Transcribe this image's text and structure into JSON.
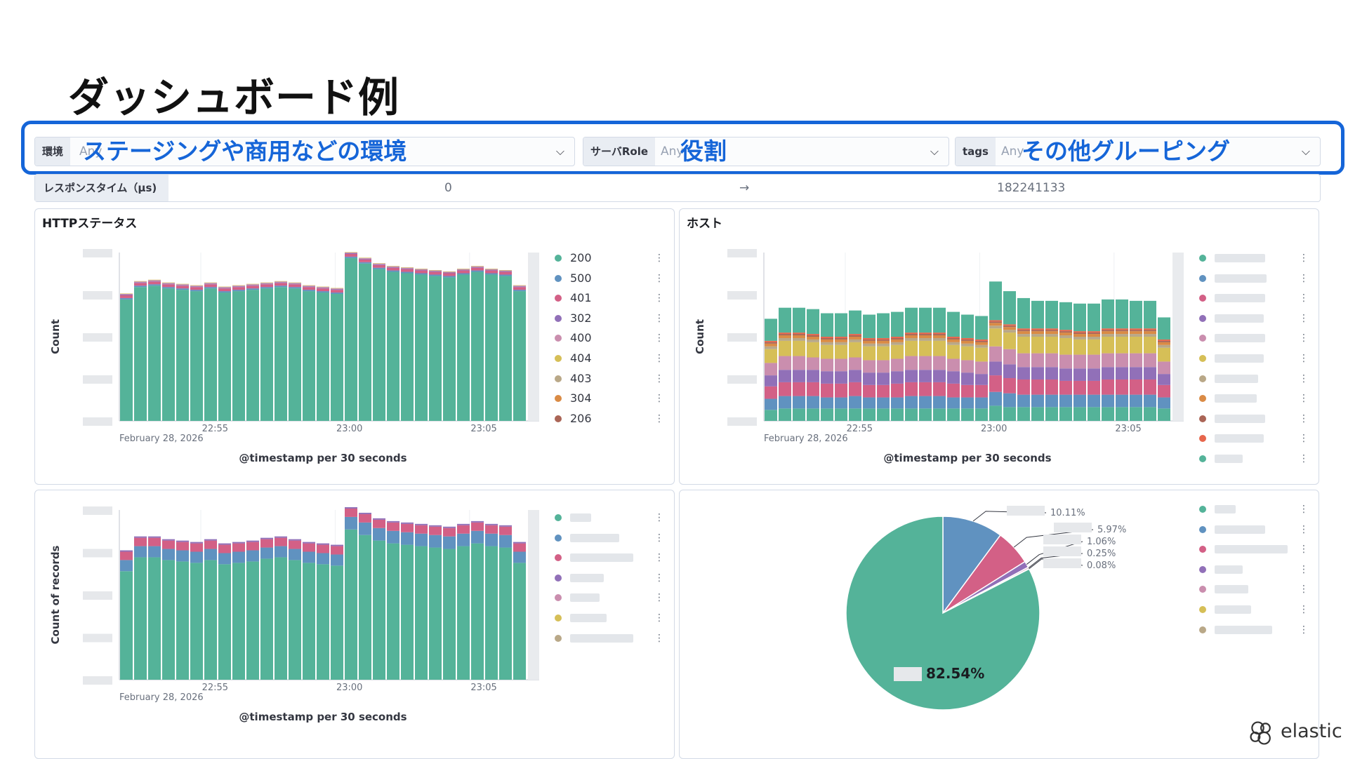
{
  "slide": {
    "title": "ダッシュボード例"
  },
  "controls": [
    {
      "label": "環境",
      "value": "Any",
      "annotation": "ステージングや商用などの環境"
    },
    {
      "label": "サーバRole",
      "value": "Any",
      "annotation": "役割"
    },
    {
      "label": "tags",
      "value": "Any",
      "annotation": "その他グルーピング"
    }
  ],
  "range": {
    "label": "レスポンスタイム（μs)",
    "min": "0",
    "arrow": "→",
    "max": "182241133"
  },
  "panels": {
    "http_status": {
      "title": "HTTPステータス"
    },
    "host": {
      "title": "ホスト"
    },
    "records": {
      "title": ""
    },
    "pie": {
      "title": ""
    }
  },
  "legend_http": [
    "200",
    "500",
    "401",
    "302",
    "400",
    "404",
    "403",
    "304",
    "206"
  ],
  "colors": [
    "#54b399",
    "#6092c0",
    "#d36086",
    "#9170b8",
    "#ca8eae",
    "#d6bf57",
    "#b9a888",
    "#da8b45",
    "#aa6556",
    "#e7664c"
  ],
  "logo": {
    "text": "elastic"
  },
  "chart_data": [
    {
      "type": "bar",
      "stacked": true,
      "title": "HTTPステータス",
      "xlabel": "@timestamp per 30 seconds",
      "ylabel": "Count",
      "x_ticks": [
        "22:55",
        "23:00",
        "23:05"
      ],
      "x_date_label": "February 28, 2026",
      "series": [
        {
          "name": "200",
          "values": [
            88,
            97,
            98,
            96,
            95,
            94,
            96,
            93,
            94,
            95,
            96,
            97,
            96,
            94,
            93,
            92,
            118,
            114,
            110,
            108,
            107,
            106,
            105,
            104,
            106,
            108,
            106,
            105,
            94
          ]
        },
        {
          "name": "500",
          "values": [
            1,
            1,
            1,
            1,
            1,
            1,
            1,
            1,
            1,
            1,
            1,
            1,
            1,
            1,
            1,
            1,
            1,
            1,
            1,
            1,
            1,
            1,
            1,
            1,
            1,
            1,
            1,
            1,
            1
          ]
        },
        {
          "name": "401",
          "values": [
            2,
            2,
            2,
            2,
            2,
            2,
            2,
            2,
            2,
            2,
            2,
            2,
            2,
            2,
            2,
            2,
            2,
            2,
            2,
            2,
            2,
            2,
            2,
            2,
            2,
            2,
            2,
            2,
            2
          ]
        },
        {
          "name": "302",
          "values": [
            0.5,
            0.5,
            0.5,
            0.5,
            0.5,
            0.5,
            0.5,
            0.5,
            0.5,
            0.5,
            0.5,
            0.5,
            0.5,
            0.5,
            0.5,
            0.5,
            0.5,
            0.5,
            0.5,
            0.5,
            0.5,
            0.5,
            0.5,
            0.5,
            0.5,
            0.5,
            0.5,
            0.5,
            0.5
          ]
        },
        {
          "name": "400",
          "values": [
            0.5,
            0.5,
            0.5,
            0.5,
            0.5,
            0.5,
            0.5,
            0.5,
            0.5,
            0.5,
            0.5,
            0.5,
            0.5,
            0.5,
            0.5,
            0.5,
            0.5,
            0.5,
            0.5,
            0.5,
            0.5,
            0.5,
            0.5,
            0.5,
            0.5,
            0.5,
            0.5,
            0.5,
            0.5
          ]
        },
        {
          "name": "404",
          "values": [
            0.3,
            0.3,
            0.3,
            0.3,
            0.3,
            0.3,
            0.3,
            0.3,
            0.3,
            0.3,
            0.3,
            0.3,
            0.3,
            0.3,
            0.3,
            0.3,
            0.3,
            0.3,
            0.3,
            0.3,
            0.3,
            0.3,
            0.3,
            0.3,
            0.3,
            0.3,
            0.3,
            0.3,
            0.3
          ]
        }
      ]
    },
    {
      "type": "bar",
      "stacked": true,
      "title": "ホスト",
      "xlabel": "@timestamp per 30 seconds",
      "ylabel": "Count",
      "x_ticks": [
        "22:55",
        "23:00",
        "23:05"
      ],
      "x_date_label": "February 28, 2026",
      "series": [
        {
          "values": [
            8,
            9,
            9,
            9,
            9,
            9,
            9,
            9,
            9,
            9,
            9,
            9,
            9,
            9,
            9,
            9,
            11,
            10,
            10,
            10,
            10,
            10,
            10,
            10,
            10,
            10,
            10,
            10,
            9
          ]
        },
        {
          "values": [
            8,
            9,
            9,
            9,
            8,
            8,
            9,
            8,
            8,
            8,
            9,
            9,
            9,
            8,
            8,
            8,
            10,
            10,
            9,
            9,
            9,
            9,
            9,
            9,
            9,
            9,
            9,
            9,
            8
          ]
        },
        {
          "values": [
            9,
            10,
            10,
            10,
            10,
            10,
            10,
            9,
            9,
            10,
            10,
            10,
            10,
            10,
            9,
            9,
            12,
            11,
            11,
            11,
            11,
            10,
            10,
            10,
            11,
            11,
            11,
            11,
            9
          ]
        },
        {
          "values": [
            8,
            9,
            9,
            9,
            9,
            9,
            9,
            9,
            9,
            9,
            9,
            9,
            9,
            9,
            9,
            8,
            10,
            10,
            9,
            9,
            9,
            9,
            9,
            9,
            9,
            9,
            9,
            9,
            8
          ]
        },
        {
          "values": [
            9,
            10,
            10,
            9,
            9,
            9,
            9,
            9,
            9,
            9,
            10,
            10,
            10,
            9,
            9,
            9,
            11,
            11,
            10,
            10,
            10,
            10,
            10,
            10,
            10,
            10,
            10,
            10,
            9
          ]
        },
        {
          "values": [
            10,
            11,
            11,
            11,
            10,
            10,
            11,
            10,
            10,
            10,
            11,
            11,
            11,
            10,
            10,
            10,
            13,
            12,
            12,
            12,
            12,
            12,
            11,
            11,
            12,
            12,
            12,
            12,
            10
          ]
        },
        {
          "values": [
            2,
            2,
            2,
            2,
            2,
            2,
            2,
            2,
            2,
            2,
            2,
            2,
            2,
            2,
            2,
            2,
            2,
            2,
            2,
            2,
            2,
            2,
            2,
            2,
            2,
            2,
            2,
            2,
            2
          ]
        },
        {
          "values": [
            2,
            2,
            2,
            2,
            2,
            2,
            2,
            2,
            2,
            2,
            2,
            2,
            2,
            2,
            2,
            2,
            2,
            2,
            2,
            2,
            2,
            2,
            2,
            2,
            2,
            2,
            2,
            2,
            2
          ]
        },
        {
          "values": [
            1,
            1,
            1,
            1,
            1,
            1,
            1,
            1,
            1,
            1,
            1,
            1,
            1,
            1,
            1,
            1,
            1,
            1,
            1,
            1,
            1,
            1,
            1,
            1,
            1,
            1,
            1,
            1,
            1
          ]
        },
        {
          "values": [
            1,
            1,
            1,
            1,
            1,
            1,
            1,
            1,
            1,
            1,
            1,
            1,
            1,
            1,
            1,
            1,
            1,
            1,
            1,
            1,
            1,
            1,
            1,
            1,
            1,
            1,
            1,
            1,
            1
          ]
        },
        {
          "values": [
            16,
            18,
            18,
            18,
            17,
            17,
            17,
            17,
            18,
            18,
            18,
            18,
            18,
            18,
            17,
            17,
            28,
            24,
            22,
            20,
            20,
            20,
            20,
            20,
            21,
            21,
            20,
            20,
            16
          ]
        }
      ]
    },
    {
      "type": "bar",
      "stacked": true,
      "xlabel": "@timestamp per 30 seconds",
      "ylabel": "Count of records",
      "x_ticks": [
        "22:55",
        "23:00",
        "23:05"
      ],
      "x_date_label": "February 28, 2026",
      "series": [
        {
          "values": [
            78,
            88,
            88,
            86,
            85,
            84,
            86,
            83,
            84,
            85,
            87,
            88,
            86,
            84,
            83,
            82,
            108,
            104,
            100,
            98,
            97,
            96,
            95,
            94,
            96,
            98,
            96,
            95,
            84
          ]
        },
        {
          "values": [
            8,
            8,
            8,
            8,
            8,
            8,
            8,
            8,
            8,
            8,
            8,
            8,
            8,
            8,
            8,
            8,
            9,
            9,
            9,
            9,
            9,
            9,
            9,
            9,
            9,
            9,
            9,
            9,
            8
          ]
        },
        {
          "values": [
            6,
            6,
            6,
            6,
            6,
            6,
            6,
            6,
            6,
            6,
            6,
            6,
            6,
            6,
            6,
            6,
            6,
            6,
            6,
            6,
            6,
            6,
            6,
            6,
            6,
            6,
            6,
            6,
            6
          ]
        },
        {
          "values": [
            1,
            1,
            1,
            1,
            1,
            1,
            1,
            1,
            1,
            1,
            1,
            1,
            1,
            1,
            1,
            1,
            1,
            1,
            1,
            1,
            1,
            1,
            1,
            1,
            1,
            1,
            1,
            1,
            1
          ]
        }
      ]
    },
    {
      "type": "pie",
      "slices": [
        {
          "label": "82.54%",
          "value": 82.54
        },
        {
          "label": "10.11%",
          "value": 10.11
        },
        {
          "label": "5.97%",
          "value": 5.97
        },
        {
          "label": "1.06%",
          "value": 1.06
        },
        {
          "label": "0.25%",
          "value": 0.25
        },
        {
          "label": "0.08%",
          "value": 0.08
        }
      ]
    }
  ]
}
